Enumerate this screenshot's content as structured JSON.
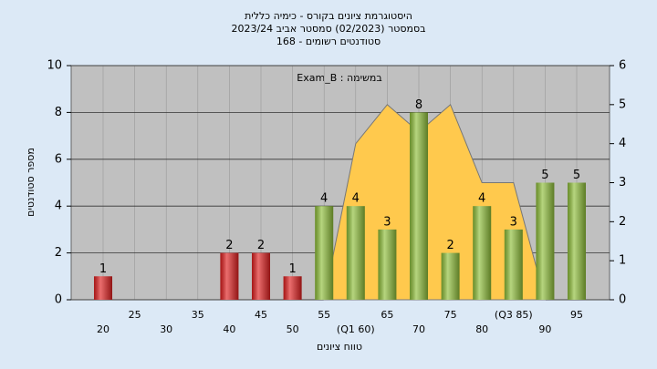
{
  "chart_data": {
    "type": "bar",
    "title": [
      "היסטוגרמת ציונים בקורס - כימיה כללית",
      "בסמסטר  (02/2023)  סמסטר אביב 2023/24",
      "סטודנטים רשומים - 168"
    ],
    "annotation": "Exam_B : במשימה",
    "xlabel": "טווח ציונים",
    "ylabel": "מספר סטודנטים",
    "categories": [
      "20",
      "25",
      "30",
      "35",
      "40",
      "45",
      "50",
      "55",
      "(Q1 60)",
      "65",
      "70",
      "75",
      "80",
      "(Q3 85)",
      "90",
      "95"
    ],
    "values": [
      1,
      0,
      0,
      0,
      2,
      2,
      1,
      4,
      4,
      3,
      8,
      2,
      4,
      3,
      5,
      5
    ],
    "colors": [
      "#e02020",
      "#e02020",
      "#e02020",
      "#e02020",
      "#e02020",
      "#e02020",
      "#e02020",
      "#8fbf3a",
      "#8fbf3a",
      "#8fbf3a",
      "#8fbf3a",
      "#8fbf3a",
      "#8fbf3a",
      "#8fbf3a",
      "#8fbf3a",
      "#8fbf3a"
    ],
    "area": {
      "axis": "y2",
      "color": "#ffc94d",
      "values": [
        null,
        null,
        null,
        null,
        null,
        null,
        null,
        0,
        4,
        5,
        4.3,
        5,
        3,
        3,
        0,
        null
      ]
    },
    "ylim": [
      0,
      10
    ],
    "yticks": [
      0,
      2,
      4,
      6,
      8,
      10
    ],
    "y2lim": [
      0,
      6
    ],
    "y2ticks": [
      0,
      1,
      2,
      3,
      4,
      5,
      6
    ],
    "grid": true
  }
}
